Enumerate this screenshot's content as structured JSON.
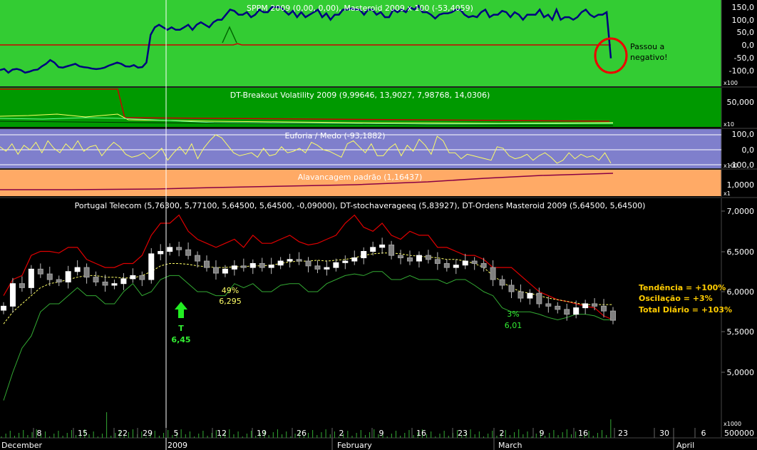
{
  "panels": {
    "sppm": {
      "title": "SPPM 2009 (0,00, 0,00), Masteroid 2009 x 100 (-53,4059)",
      "axis_ticks": [
        "150,0",
        "100,0",
        "50,0",
        "0,0",
        "-50,0",
        "-100,0"
      ],
      "axis_tick_values": [
        150,
        100,
        50,
        0,
        -50,
        -100
      ],
      "multiplier": "x100",
      "annotation_lines": [
        "Passou a",
        "negativo!"
      ]
    },
    "breakout": {
      "title": "DT-Breakout Volatility 2009 (9,99646, 13,9027, 7,98768, 14,0306)",
      "axis_ticks": [
        "50,000"
      ],
      "multiplier": "x10"
    },
    "euforia": {
      "title": "Euforia / Medo (-93,1882)",
      "axis_ticks": [
        "100,0",
        "0,0",
        "-100,0"
      ],
      "multiplier": "x100"
    },
    "alavancagem": {
      "title": "Alavancagem padrão (1,16437)",
      "axis_ticks": [
        "1,0000"
      ],
      "multiplier": "x1"
    },
    "price": {
      "title": "Portugal Telecom (5,76300, 5,77100, 5,64500, 5,64500, -0,09000), DT-stochaverageeq (5,83927), DT-Ordens Masteroid 2009 (5,64500, 5,64500)",
      "axis_ticks": [
        "7,0000",
        "6,5000",
        "6,0000",
        "5,5000",
        "5,0000"
      ],
      "axis_tick_values": [
        7.0,
        6.5,
        6.0,
        5.5,
        5.0
      ],
      "signal_letter": "T",
      "signal_price": "6,45",
      "ann1_pct": "49%",
      "ann1_price": "6,295",
      "ann2_pct": "3%",
      "ann2_price": "6,01",
      "stats": [
        "Tendência = +100%",
        "Oscilação = +3%",
        "Total Diário = +103%"
      ]
    },
    "volume": {
      "axis_tick": "500000",
      "multiplier": "x1000"
    }
  },
  "x_axis": {
    "day_labels": [
      "8",
      "15",
      "22",
      "29",
      "5",
      "12",
      "19",
      "26",
      "2",
      "9",
      "16",
      "23",
      "2",
      "9",
      "16",
      "23",
      "30",
      "6"
    ],
    "month_labels": [
      "December",
      "2009",
      "February",
      "March",
      "April"
    ]
  },
  "colors": {
    "sppm_bg": "#33cc33",
    "breakout_bg": "#009900",
    "euforia_bg": "#7f7fcc",
    "alav_bg": "#ffaa66",
    "masteroid_line": "#000080",
    "sppm_line": "#cc0000",
    "upper_band": "#e00000",
    "lower_band": "#33aa33",
    "stoch_avg": "#ffff66",
    "stats_text": "#ffcc00",
    "circle": "#ee0000"
  },
  "chart_data": [
    {
      "type": "line",
      "title": "SPPM 2009 (0,00, 0,00), Masteroid 2009 x 100 (-53,4059)",
      "ylim": [
        -130,
        175
      ],
      "series": [
        {
          "name": "Masteroid 2009 x 100",
          "values": [
            -100,
            -95,
            -110,
            -98,
            -95,
            -100,
            -110,
            -106,
            -100,
            -98,
            -85,
            -75,
            -60,
            -70,
            -88,
            -90,
            -85,
            -80,
            -75,
            -85,
            -88,
            -90,
            -94,
            -96,
            -94,
            -90,
            -82,
            -76,
            -70,
            -75,
            -85,
            -86,
            -80,
            -90,
            -88,
            -70,
            40,
            70,
            80,
            70,
            60,
            70,
            60,
            60,
            70,
            80,
            60,
            80,
            90,
            80,
            70,
            90,
            100,
            100,
            120,
            140,
            135,
            120,
            120,
            130,
            110,
            120,
            140,
            130,
            130,
            150,
            150,
            150,
            135,
            120,
            135,
            110,
            130,
            110,
            120,
            130,
            140,
            110,
            125,
            100,
            120,
            120,
            140,
            140,
            145,
            140,
            140,
            120,
            140,
            140,
            120,
            130,
            110,
            110,
            140,
            130,
            140,
            130,
            150,
            140,
            155,
            130,
            130,
            120,
            105,
            120,
            125,
            125,
            130,
            140,
            140,
            120,
            110,
            115,
            110,
            130,
            140,
            110,
            120,
            120,
            135,
            130,
            110,
            130,
            120,
            100,
            120,
            120,
            120,
            140,
            110,
            120,
            100,
            140,
            100,
            110,
            110,
            100,
            110,
            130,
            140,
            120,
            110,
            120,
            120,
            130,
            -53
          ]
        },
        {
          "name": "SPPM 2009",
          "values": [
            0,
            0,
            0,
            0,
            0,
            0,
            0,
            0,
            0,
            0,
            0,
            0,
            0,
            0,
            0,
            0,
            0,
            0,
            0,
            0,
            0,
            0,
            0,
            0,
            0,
            0,
            0,
            0,
            0,
            0,
            0,
            0,
            0,
            0,
            0,
            0,
            0,
            0,
            0,
            0,
            0,
            0,
            0,
            0,
            0,
            0,
            0,
            0,
            0,
            0,
            0,
            0,
            0,
            0,
            0,
            0,
            5,
            0,
            0,
            0,
            0,
            0,
            0,
            0,
            0,
            0,
            0,
            0,
            0,
            0,
            0,
            0,
            0,
            0,
            0,
            0,
            0,
            0,
            0,
            0,
            0,
            0,
            0,
            0,
            0,
            0,
            0,
            0,
            0,
            0,
            0,
            0,
            0,
            0,
            0,
            0,
            0,
            0,
            0,
            0,
            0,
            0,
            0,
            0,
            0,
            0,
            0,
            0,
            0,
            0,
            0,
            0,
            0,
            0,
            0,
            0,
            0,
            0,
            0,
            0,
            0,
            0,
            0,
            0,
            0,
            0,
            0,
            0,
            0,
            0,
            0,
            0,
            0,
            0,
            0,
            0,
            0,
            0,
            0,
            0,
            0,
            0,
            0,
            0,
            0
          ]
        }
      ]
    },
    {
      "type": "line",
      "title": "Euforia / Medo (-93,1882)",
      "ylim": [
        -110,
        110
      ],
      "series": [
        {
          "name": "Euforia / Medo",
          "values": [
            20,
            -10,
            40,
            -30,
            30,
            0,
            50,
            -20,
            60,
            10,
            -20,
            40,
            0,
            60,
            -10,
            20,
            30,
            -40,
            10,
            50,
            20,
            -30,
            -50,
            -40,
            -20,
            -60,
            -30,
            10,
            -70,
            -20,
            20,
            -30,
            40,
            -60,
            10,
            60,
            100,
            80,
            30,
            -20,
            -40,
            -30,
            -20,
            -50,
            10,
            -40,
            -30,
            20,
            -20,
            -10,
            10,
            -20,
            50,
            30,
            0,
            -10,
            -30,
            -50,
            40,
            60,
            20,
            -20,
            40,
            -40,
            -40,
            10,
            40,
            -40,
            30,
            -10,
            70,
            30,
            -30,
            90,
            60,
            -20,
            -20,
            -60,
            -30,
            -40,
            -50,
            -60,
            -70,
            20,
            10,
            -40,
            -60,
            -50,
            -30,
            -70,
            -40,
            -20,
            -50,
            -90,
            -70,
            -20,
            -60,
            -30,
            -50,
            -40,
            -70,
            -20,
            -90
          ]
        }
      ]
    },
    {
      "type": "line",
      "title": "Portugal Telecom (5,76300, 5,77100, 5,64500, 5,64500, -0,09000), DT-stochaverageeq (5,83927), DT-Ordens Masteroid 2009 (5,64500, 5,64500)",
      "ylim": [
        4.55,
        7.25
      ],
      "series": [
        {
          "name": "Close",
          "values": [
            5.82,
            6.1,
            6.05,
            6.28,
            6.22,
            6.15,
            6.12,
            6.25,
            6.3,
            6.18,
            6.12,
            6.08,
            6.1,
            6.16,
            6.2,
            6.15,
            6.47,
            6.5,
            6.55,
            6.52,
            6.45,
            6.38,
            6.3,
            6.23,
            6.28,
            6.32,
            6.3,
            6.35,
            6.3,
            6.33,
            6.38,
            6.4,
            6.38,
            6.32,
            6.28,
            6.3,
            6.36,
            6.38,
            6.42,
            6.5,
            6.55,
            6.58,
            6.45,
            6.42,
            6.38,
            6.45,
            6.4,
            6.35,
            6.3,
            6.33,
            6.38,
            6.35,
            6.3,
            6.15,
            6.08,
            6.0,
            5.92,
            5.98,
            5.85,
            5.82,
            5.78,
            5.72,
            5.8,
            5.85,
            5.82,
            5.76,
            5.645
          ]
        },
        {
          "name": "DT-stochaverageeq",
          "values": [
            5.6,
            5.75,
            5.85,
            5.95,
            6.05,
            6.1,
            6.12,
            6.15,
            6.18,
            6.2,
            6.2,
            6.18,
            6.18,
            6.17,
            6.17,
            6.2,
            6.25,
            6.32,
            6.35,
            6.35,
            6.34,
            6.32,
            6.31,
            6.3,
            6.3,
            6.31,
            6.31,
            6.32,
            6.32,
            6.33,
            6.35,
            6.37,
            6.38,
            6.38,
            6.39,
            6.38,
            6.39,
            6.4,
            6.42,
            6.45,
            6.47,
            6.48,
            6.48,
            6.47,
            6.45,
            6.44,
            6.43,
            6.42,
            6.4,
            6.4,
            6.38,
            6.35,
            6.3,
            6.2,
            6.12,
            6.05,
            6.0,
            5.98,
            5.95,
            5.92,
            5.9,
            5.88,
            5.86,
            5.84,
            5.84,
            5.84,
            5.839
          ]
        },
        {
          "name": "Upper band",
          "values": [
            5.95,
            6.15,
            6.2,
            6.45,
            6.5,
            6.5,
            6.48,
            6.55,
            6.55,
            6.4,
            6.35,
            6.3,
            6.3,
            6.35,
            6.35,
            6.45,
            6.7,
            6.85,
            6.85,
            6.95,
            6.75,
            6.65,
            6.6,
            6.55,
            6.6,
            6.65,
            6.55,
            6.7,
            6.6,
            6.6,
            6.65,
            6.7,
            6.62,
            6.58,
            6.6,
            6.65,
            6.7,
            6.85,
            6.95,
            6.8,
            6.75,
            6.85,
            6.7,
            6.65,
            6.75,
            6.7,
            6.7,
            6.55,
            6.55,
            6.5,
            6.45,
            6.45,
            6.4,
            6.3,
            6.3,
            6.3,
            6.2,
            6.1,
            6.0,
            5.95,
            5.9,
            5.88,
            5.85,
            5.82,
            5.8,
            5.7,
            5.65
          ]
        },
        {
          "name": "Lower band",
          "values": [
            4.65,
            5.0,
            5.3,
            5.45,
            5.75,
            5.85,
            5.85,
            5.95,
            6.05,
            5.95,
            5.95,
            5.85,
            5.85,
            6.0,
            6.1,
            5.95,
            6.0,
            6.15,
            6.2,
            6.2,
            6.1,
            6.0,
            6.0,
            5.95,
            5.95,
            6.1,
            6.05,
            6.1,
            6.0,
            6.0,
            6.08,
            6.1,
            6.1,
            6.0,
            6.0,
            6.1,
            6.15,
            6.2,
            6.22,
            6.2,
            6.25,
            6.25,
            6.15,
            6.15,
            6.2,
            6.15,
            6.15,
            6.15,
            6.1,
            6.15,
            6.15,
            6.08,
            6.0,
            5.95,
            5.8,
            5.75,
            5.75,
            5.75,
            5.72,
            5.68,
            5.65,
            5.68,
            5.72,
            5.72,
            5.7,
            5.65,
            5.65
          ]
        }
      ]
    }
  ]
}
